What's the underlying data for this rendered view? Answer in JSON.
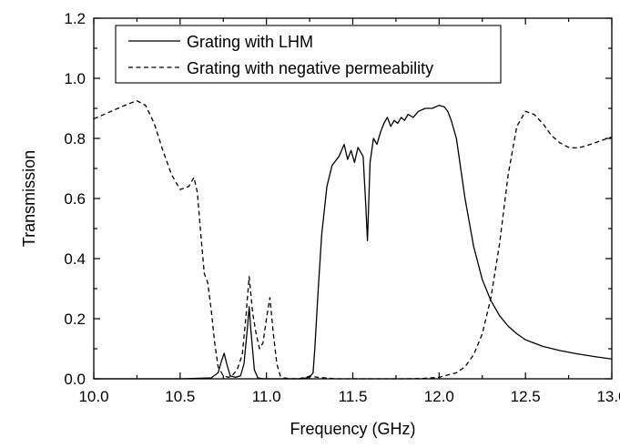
{
  "chart_data": {
    "type": "line",
    "xlabel": "Frequency (GHz)",
    "ylabel": "Transmission",
    "xlim": [
      10.0,
      13.0
    ],
    "ylim": [
      0.0,
      1.2
    ],
    "xticks": [
      10.0,
      10.5,
      11.0,
      11.5,
      12.0,
      12.5,
      13.0
    ],
    "xtick_labels": [
      "10.0",
      "10.5",
      "11.0",
      "11.5",
      "12.0",
      "12.5",
      "13.0"
    ],
    "yticks": [
      0.0,
      0.2,
      0.4,
      0.6,
      0.8,
      1.0,
      1.2
    ],
    "ytick_labels": [
      "0.0",
      "0.2",
      "0.4",
      "0.6",
      "0.8",
      "1.0",
      "1.2"
    ],
    "grid": false,
    "legend_position": "top-left",
    "series": [
      {
        "name": "Grating with LHM",
        "style": "solid",
        "x": [
          10.0,
          10.5,
          10.68,
          10.72,
          10.74,
          10.755,
          10.77,
          10.79,
          10.82,
          10.85,
          10.87,
          10.89,
          10.9,
          10.91,
          10.93,
          10.95,
          10.98,
          11.0,
          11.1,
          11.2,
          11.25,
          11.27,
          11.28,
          11.3,
          11.32,
          11.35,
          11.38,
          11.42,
          11.45,
          11.47,
          11.49,
          11.51,
          11.53,
          11.56,
          11.575,
          11.585,
          11.6,
          11.62,
          11.64,
          11.66,
          11.68,
          11.7,
          11.72,
          11.74,
          11.76,
          11.78,
          11.8,
          11.82,
          11.85,
          11.88,
          11.92,
          11.96,
          12.0,
          12.03,
          12.05,
          12.07,
          12.1,
          12.12,
          12.15,
          12.2,
          12.25,
          12.3,
          12.35,
          12.4,
          12.45,
          12.5,
          12.6,
          12.7,
          12.8,
          12.9,
          13.0
        ],
        "y": [
          0.0,
          0.0,
          0.003,
          0.02,
          0.06,
          0.085,
          0.05,
          0.01,
          0.005,
          0.01,
          0.05,
          0.17,
          0.24,
          0.16,
          0.03,
          0.003,
          0.0,
          0.0,
          0.0,
          0.0,
          0.005,
          0.02,
          0.1,
          0.3,
          0.48,
          0.64,
          0.71,
          0.74,
          0.78,
          0.73,
          0.76,
          0.72,
          0.77,
          0.74,
          0.58,
          0.46,
          0.72,
          0.8,
          0.78,
          0.82,
          0.85,
          0.87,
          0.84,
          0.86,
          0.85,
          0.87,
          0.86,
          0.88,
          0.87,
          0.89,
          0.9,
          0.9,
          0.91,
          0.905,
          0.89,
          0.86,
          0.8,
          0.72,
          0.6,
          0.44,
          0.33,
          0.26,
          0.21,
          0.175,
          0.15,
          0.13,
          0.108,
          0.094,
          0.083,
          0.074,
          0.066
        ]
      },
      {
        "name": "Grating with negative permeability",
        "style": "dashed",
        "x": [
          10.0,
          10.1,
          10.2,
          10.25,
          10.3,
          10.35,
          10.4,
          10.45,
          10.5,
          10.55,
          10.58,
          10.6,
          10.62,
          10.64,
          10.66,
          10.68,
          10.7,
          10.72,
          10.75,
          10.78,
          10.8,
          10.83,
          10.86,
          10.88,
          10.9,
          10.92,
          10.94,
          10.96,
          10.98,
          11.0,
          11.02,
          11.04,
          11.06,
          11.08,
          11.1,
          11.15,
          11.2,
          11.25,
          11.3,
          11.4,
          11.5,
          11.8,
          11.9,
          12.0,
          12.1,
          12.15,
          12.2,
          12.25,
          12.3,
          12.35,
          12.4,
          12.45,
          12.5,
          12.55,
          12.6,
          12.65,
          12.7,
          12.75,
          12.8,
          12.85,
          12.9,
          12.95,
          13.0
        ],
        "y": [
          0.865,
          0.89,
          0.915,
          0.925,
          0.91,
          0.85,
          0.76,
          0.68,
          0.63,
          0.64,
          0.67,
          0.62,
          0.48,
          0.35,
          0.32,
          0.23,
          0.12,
          0.04,
          0.01,
          0.005,
          0.01,
          0.03,
          0.08,
          0.2,
          0.34,
          0.22,
          0.15,
          0.1,
          0.12,
          0.2,
          0.27,
          0.15,
          0.05,
          0.01,
          0.003,
          0.0,
          0.002,
          0.008,
          0.005,
          0.0,
          0.0,
          0.0,
          0.001,
          0.005,
          0.02,
          0.04,
          0.08,
          0.15,
          0.27,
          0.45,
          0.68,
          0.84,
          0.89,
          0.88,
          0.85,
          0.81,
          0.785,
          0.77,
          0.768,
          0.775,
          0.785,
          0.795,
          0.805
        ]
      }
    ]
  }
}
